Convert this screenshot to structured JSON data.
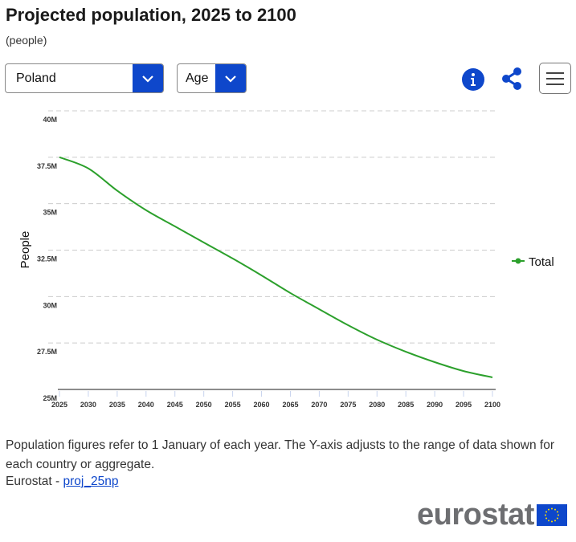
{
  "header": {
    "title": "Projected population, 2025 to 2100",
    "subtitle": "(people)"
  },
  "controls": {
    "country_select": {
      "value": "Poland",
      "icon": "chevron-down-icon"
    },
    "age_select": {
      "value": "Age",
      "icon": "chevron-down-icon"
    },
    "info_icon": "info-icon",
    "share_icon": "share-icon",
    "menu_icon": "hamburger-menu-icon"
  },
  "colors": {
    "accent": "#0e47cb",
    "series": "#2ca02c",
    "grid": "#cccccc"
  },
  "chart_data": {
    "type": "line",
    "ylabel": "People",
    "xlabel": "",
    "ylim": [
      25000000,
      40000000
    ],
    "yticks": [
      25000000,
      27500000,
      30000000,
      32500000,
      35000000,
      37500000,
      40000000
    ],
    "ytick_labels": [
      "25M",
      "27.5M",
      "30M",
      "32.5M",
      "35M",
      "37.5M",
      "40M"
    ],
    "x": [
      2025,
      2030,
      2035,
      2040,
      2045,
      2050,
      2055,
      2060,
      2065,
      2070,
      2075,
      2080,
      2085,
      2090,
      2095,
      2100
    ],
    "xtick_labels": [
      "2025",
      "2030",
      "2035",
      "2040",
      "2045",
      "2050",
      "2055",
      "2060",
      "2065",
      "2070",
      "2075",
      "2080",
      "2085",
      "2090",
      "2095",
      "2100"
    ],
    "grid": true,
    "legend_position": "right",
    "series": [
      {
        "name": "Total",
        "color": "#2ca02c",
        "values": [
          37500000,
          36900000,
          35700000,
          34650000,
          33780000,
          32910000,
          32050000,
          31140000,
          30190000,
          29320000,
          28460000,
          27680000,
          27030000,
          26470000,
          25990000,
          25650000
        ]
      }
    ]
  },
  "footer": {
    "note": "Population figures refer to 1 January of each year. The Y-axis adjusts to the range of data shown for each country or aggregate.",
    "source_prefix": "Eurostat - ",
    "source_link": "proj_25np",
    "logo": "eurostat"
  }
}
